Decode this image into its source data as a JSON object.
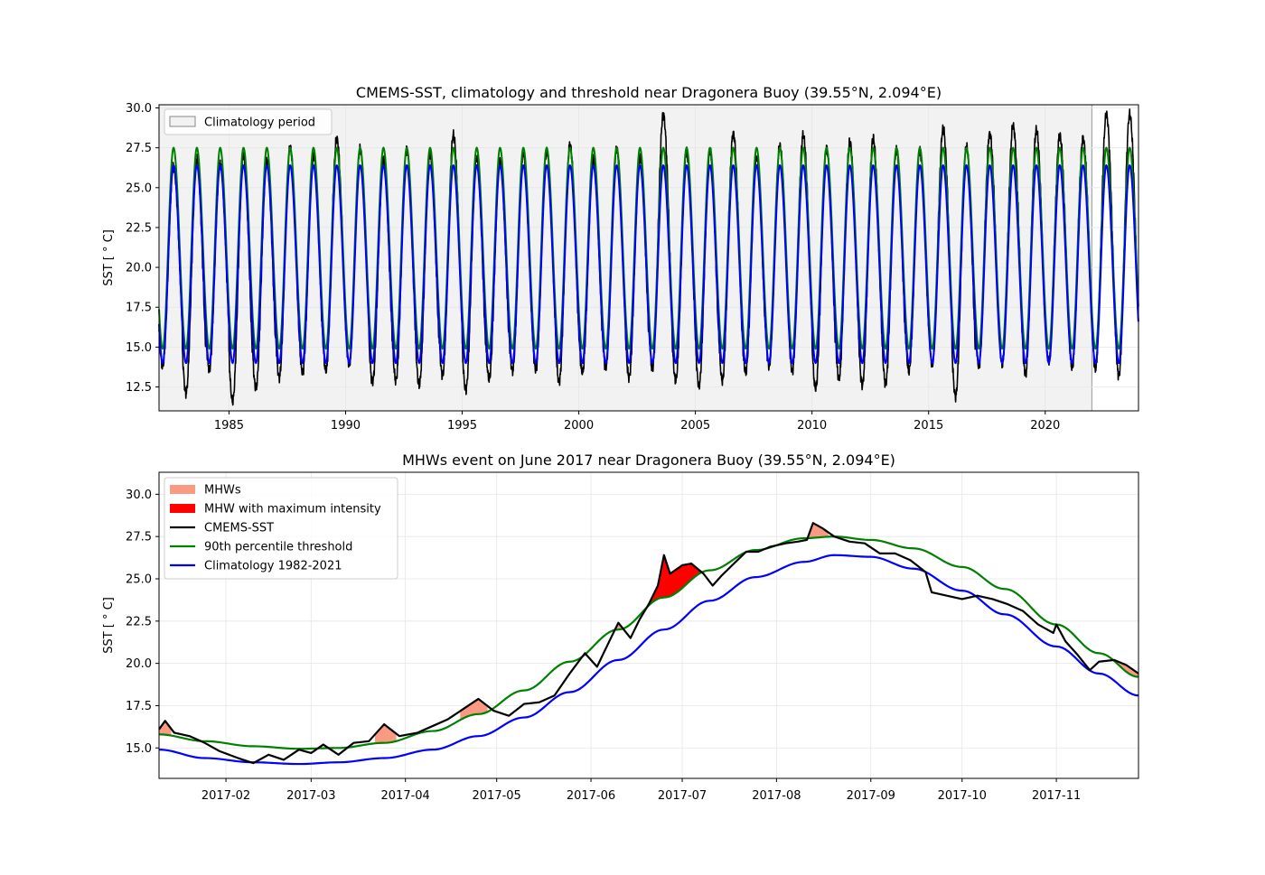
{
  "colors": {
    "sst": "#000000",
    "threshold": "#008000",
    "climatology": "#0000ff",
    "mhw": "#fa9a82",
    "mhw_max": "#ff0000",
    "clim_period_fill": "#f2f2f2",
    "grid": "#e6e6e6"
  },
  "chart_data": [
    {
      "type": "line",
      "title": "CMEMS-SST, climatology and threshold near Dragonera Buoy (39.55°N, 2.094°E)",
      "xlabel": "",
      "ylabel": "SST [$^\\circ$C]",
      "ylabel_display": "SST [ ° C]",
      "xlim": [
        1982.0,
        2024.0
      ],
      "ylim": [
        11.0,
        30.2
      ],
      "xticks": [
        1985,
        1990,
        1995,
        2000,
        2005,
        2010,
        2015,
        2020
      ],
      "xtick_labels": [
        "1985",
        "1990",
        "1995",
        "2000",
        "2005",
        "2010",
        "2015",
        "2020"
      ],
      "yticks": [
        12.5,
        15.0,
        17.5,
        20.0,
        22.5,
        25.0,
        27.5,
        30.0
      ],
      "ytick_labels": [
        "12.5",
        "15.0",
        "17.5",
        "20.0",
        "22.5",
        "25.0",
        "27.5",
        "30.0"
      ],
      "grid": true,
      "legend": {
        "placement": "top-left",
        "entries": [
          {
            "label": "Climatology period",
            "kind": "patch"
          }
        ]
      },
      "climatology_period": {
        "start": 1982.0,
        "end": 2022.0
      },
      "seasonal_cycle": {
        "climatology_min": 14.0,
        "climatology_max": 26.4,
        "threshold_min": 14.9,
        "threshold_max": 27.5,
        "peak_day_of_year": 227,
        "trough_day_of_year": 57
      },
      "annual_sst_peaks": [
        {
          "year": 1982,
          "value": 26.3
        },
        {
          "year": 1983,
          "value": 26.8
        },
        {
          "year": 1984,
          "value": 26.5
        },
        {
          "year": 1985,
          "value": 27.0
        },
        {
          "year": 1986,
          "value": 26.7
        },
        {
          "year": 1987,
          "value": 27.5
        },
        {
          "year": 1988,
          "value": 27.0
        },
        {
          "year": 1989,
          "value": 28.1
        },
        {
          "year": 1990,
          "value": 27.4
        },
        {
          "year": 1991,
          "value": 26.8
        },
        {
          "year": 1992,
          "value": 27.4
        },
        {
          "year": 1993,
          "value": 27.1
        },
        {
          "year": 1994,
          "value": 28.3
        },
        {
          "year": 1995,
          "value": 26.9
        },
        {
          "year": 1996,
          "value": 26.7
        },
        {
          "year": 1997,
          "value": 27.1
        },
        {
          "year": 1998,
          "value": 27.3
        },
        {
          "year": 1999,
          "value": 27.7
        },
        {
          "year": 2000,
          "value": 26.8
        },
        {
          "year": 2001,
          "value": 27.4
        },
        {
          "year": 2002,
          "value": 26.9
        },
        {
          "year": 2003,
          "value": 29.6
        },
        {
          "year": 2004,
          "value": 27.2
        },
        {
          "year": 2005,
          "value": 27.3
        },
        {
          "year": 2006,
          "value": 28.4
        },
        {
          "year": 2007,
          "value": 26.9
        },
        {
          "year": 2008,
          "value": 27.6
        },
        {
          "year": 2009,
          "value": 28.3
        },
        {
          "year": 2010,
          "value": 27.5
        },
        {
          "year": 2011,
          "value": 27.9
        },
        {
          "year": 2012,
          "value": 28.1
        },
        {
          "year": 2013,
          "value": 27.4
        },
        {
          "year": 2014,
          "value": 27.3
        },
        {
          "year": 2015,
          "value": 28.7
        },
        {
          "year": 2016,
          "value": 27.6
        },
        {
          "year": 2017,
          "value": 28.4
        },
        {
          "year": 2018,
          "value": 28.9
        },
        {
          "year": 2019,
          "value": 28.6
        },
        {
          "year": 2020,
          "value": 28.3
        },
        {
          "year": 2021,
          "value": 28.1
        },
        {
          "year": 2022,
          "value": 29.6
        },
        {
          "year": 2023,
          "value": 29.6
        }
      ],
      "annual_sst_troughs": [
        {
          "year": 1982,
          "value": 13.8
        },
        {
          "year": 1983,
          "value": 12.1
        },
        {
          "year": 1984,
          "value": 13.6
        },
        {
          "year": 1985,
          "value": 11.6
        },
        {
          "year": 1986,
          "value": 12.4
        },
        {
          "year": 1987,
          "value": 13.1
        },
        {
          "year": 1988,
          "value": 13.4
        },
        {
          "year": 1989,
          "value": 13.5
        },
        {
          "year": 1990,
          "value": 13.9
        },
        {
          "year": 1991,
          "value": 12.8
        },
        {
          "year": 1992,
          "value": 12.9
        },
        {
          "year": 1993,
          "value": 12.6
        },
        {
          "year": 1994,
          "value": 13.2
        },
        {
          "year": 1995,
          "value": 12.3
        },
        {
          "year": 1996,
          "value": 13.0
        },
        {
          "year": 1997,
          "value": 13.5
        },
        {
          "year": 1998,
          "value": 13.6
        },
        {
          "year": 1999,
          "value": 12.8
        },
        {
          "year": 2000,
          "value": 13.4
        },
        {
          "year": 2001,
          "value": 13.7
        },
        {
          "year": 2002,
          "value": 13.1
        },
        {
          "year": 2003,
          "value": 13.6
        },
        {
          "year": 2004,
          "value": 12.9
        },
        {
          "year": 2005,
          "value": 12.6
        },
        {
          "year": 2006,
          "value": 12.9
        },
        {
          "year": 2007,
          "value": 13.4
        },
        {
          "year": 2008,
          "value": 13.8
        },
        {
          "year": 2009,
          "value": 13.5
        },
        {
          "year": 2010,
          "value": 12.4
        },
        {
          "year": 2011,
          "value": 13.0
        },
        {
          "year": 2012,
          "value": 12.6
        },
        {
          "year": 2013,
          "value": 12.7
        },
        {
          "year": 2014,
          "value": 13.5
        },
        {
          "year": 2015,
          "value": 13.9
        },
        {
          "year": 2016,
          "value": 11.9
        },
        {
          "year": 2017,
          "value": 13.8
        },
        {
          "year": 2018,
          "value": 13.9
        },
        {
          "year": 2019,
          "value": 13.3
        },
        {
          "year": 2020,
          "value": 14.1
        },
        {
          "year": 2021,
          "value": 13.7
        },
        {
          "year": 2022,
          "value": 13.6
        },
        {
          "year": 2023,
          "value": 13.2
        }
      ]
    },
    {
      "type": "line",
      "title": "MHWs event on June 2017 near Dragonera Buoy (39.55°N, 2.094°E)",
      "xlabel": "",
      "ylabel": "SST [$^\\circ$C]",
      "ylabel_display": "SST [ ° C]",
      "xlim": [
        "2017-01-10",
        "2017-11-28"
      ],
      "ylim": [
        13.2,
        31.3
      ],
      "xticks": [
        "2017-02-01",
        "2017-03-01",
        "2017-04-01",
        "2017-05-01",
        "2017-06-01",
        "2017-07-01",
        "2017-08-01",
        "2017-09-01",
        "2017-10-01",
        "2017-11-01"
      ],
      "xtick_labels": [
        "2017-02",
        "2017-03",
        "2017-04",
        "2017-05",
        "2017-06",
        "2017-07",
        "2017-08",
        "2017-09",
        "2017-10",
        "2017-11"
      ],
      "yticks": [
        15.0,
        17.5,
        20.0,
        22.5,
        25.0,
        27.5,
        30.0
      ],
      "ytick_labels": [
        "15.0",
        "17.5",
        "20.0",
        "22.5",
        "25.0",
        "27.5",
        "30.0"
      ],
      "grid": true,
      "legend": {
        "placement": "top-left",
        "entries": [
          {
            "label": "MHWs",
            "kind": "patch"
          },
          {
            "label": "MHW with maximum intensity",
            "kind": "patch"
          },
          {
            "label": "CMEMS-SST",
            "kind": "line"
          },
          {
            "label": "90th percentile threshold",
            "kind": "line"
          },
          {
            "label": "Climatology 1982-2021",
            "kind": "line"
          }
        ]
      },
      "climatology_curve": [
        {
          "date": "2017-01-10",
          "value": 14.9
        },
        {
          "date": "2017-01-25",
          "value": 14.4
        },
        {
          "date": "2017-02-10",
          "value": 14.15
        },
        {
          "date": "2017-02-25",
          "value": 14.05
        },
        {
          "date": "2017-03-10",
          "value": 14.15
        },
        {
          "date": "2017-03-25",
          "value": 14.4
        },
        {
          "date": "2017-04-10",
          "value": 14.9
        },
        {
          "date": "2017-04-25",
          "value": 15.7
        },
        {
          "date": "2017-05-10",
          "value": 16.8
        },
        {
          "date": "2017-05-25",
          "value": 18.3
        },
        {
          "date": "2017-06-10",
          "value": 20.2
        },
        {
          "date": "2017-06-25",
          "value": 22.0
        },
        {
          "date": "2017-07-10",
          "value": 23.7
        },
        {
          "date": "2017-07-25",
          "value": 25.1
        },
        {
          "date": "2017-08-10",
          "value": 26.0
        },
        {
          "date": "2017-08-20",
          "value": 26.4
        },
        {
          "date": "2017-09-01",
          "value": 26.3
        },
        {
          "date": "2017-09-15",
          "value": 25.6
        },
        {
          "date": "2017-10-01",
          "value": 24.3
        },
        {
          "date": "2017-10-15",
          "value": 22.9
        },
        {
          "date": "2017-11-01",
          "value": 21.0
        },
        {
          "date": "2017-11-15",
          "value": 19.4
        },
        {
          "date": "2017-11-28",
          "value": 18.1
        }
      ],
      "threshold_curve": [
        {
          "date": "2017-01-10",
          "value": 15.8
        },
        {
          "date": "2017-01-25",
          "value": 15.4
        },
        {
          "date": "2017-02-10",
          "value": 15.1
        },
        {
          "date": "2017-02-25",
          "value": 14.95
        },
        {
          "date": "2017-03-10",
          "value": 15.0
        },
        {
          "date": "2017-03-25",
          "value": 15.3
        },
        {
          "date": "2017-04-10",
          "value": 16.0
        },
        {
          "date": "2017-04-25",
          "value": 17.0
        },
        {
          "date": "2017-05-10",
          "value": 18.4
        },
        {
          "date": "2017-05-25",
          "value": 20.1
        },
        {
          "date": "2017-06-10",
          "value": 22.0
        },
        {
          "date": "2017-06-25",
          "value": 23.9
        },
        {
          "date": "2017-07-10",
          "value": 25.5
        },
        {
          "date": "2017-07-25",
          "value": 26.7
        },
        {
          "date": "2017-08-10",
          "value": 27.4
        },
        {
          "date": "2017-08-20",
          "value": 27.5
        },
        {
          "date": "2017-09-01",
          "value": 27.3
        },
        {
          "date": "2017-09-15",
          "value": 26.8
        },
        {
          "date": "2017-10-01",
          "value": 25.7
        },
        {
          "date": "2017-10-15",
          "value": 24.4
        },
        {
          "date": "2017-11-01",
          "value": 22.3
        },
        {
          "date": "2017-11-15",
          "value": 20.6
        },
        {
          "date": "2017-11-28",
          "value": 19.2
        }
      ],
      "sst_curve": [
        {
          "date": "2017-01-10",
          "value": 16.1
        },
        {
          "date": "2017-01-12",
          "value": 16.6
        },
        {
          "date": "2017-01-15",
          "value": 15.9
        },
        {
          "date": "2017-01-20",
          "value": 15.7
        },
        {
          "date": "2017-01-25",
          "value": 15.3
        },
        {
          "date": "2017-01-30",
          "value": 14.8
        },
        {
          "date": "2017-02-05",
          "value": 14.4
        },
        {
          "date": "2017-02-10",
          "value": 14.1
        },
        {
          "date": "2017-02-15",
          "value": 14.6
        },
        {
          "date": "2017-02-20",
          "value": 14.3
        },
        {
          "date": "2017-02-25",
          "value": 14.9
        },
        {
          "date": "2017-03-01",
          "value": 14.7
        },
        {
          "date": "2017-03-05",
          "value": 15.2
        },
        {
          "date": "2017-03-10",
          "value": 14.6
        },
        {
          "date": "2017-03-15",
          "value": 15.3
        },
        {
          "date": "2017-03-20",
          "value": 15.4
        },
        {
          "date": "2017-03-25",
          "value": 16.4
        },
        {
          "date": "2017-03-30",
          "value": 15.7
        },
        {
          "date": "2017-04-05",
          "value": 15.9
        },
        {
          "date": "2017-04-10",
          "value": 16.3
        },
        {
          "date": "2017-04-15",
          "value": 16.7
        },
        {
          "date": "2017-04-20",
          "value": 17.3
        },
        {
          "date": "2017-04-25",
          "value": 17.9
        },
        {
          "date": "2017-04-30",
          "value": 17.2
        },
        {
          "date": "2017-05-05",
          "value": 16.9
        },
        {
          "date": "2017-05-10",
          "value": 17.6
        },
        {
          "date": "2017-05-15",
          "value": 17.7
        },
        {
          "date": "2017-05-20",
          "value": 18.1
        },
        {
          "date": "2017-05-25",
          "value": 19.4
        },
        {
          "date": "2017-05-30",
          "value": 20.6
        },
        {
          "date": "2017-06-03",
          "value": 19.8
        },
        {
          "date": "2017-06-07",
          "value": 21.3
        },
        {
          "date": "2017-06-10",
          "value": 22.4
        },
        {
          "date": "2017-06-14",
          "value": 21.5
        },
        {
          "date": "2017-06-17",
          "value": 22.6
        },
        {
          "date": "2017-06-20",
          "value": 23.5
        },
        {
          "date": "2017-06-23",
          "value": 24.6
        },
        {
          "date": "2017-06-25",
          "value": 26.4
        },
        {
          "date": "2017-06-27",
          "value": 25.3
        },
        {
          "date": "2017-07-01",
          "value": 25.8
        },
        {
          "date": "2017-07-04",
          "value": 25.9
        },
        {
          "date": "2017-07-08",
          "value": 25.3
        },
        {
          "date": "2017-07-11",
          "value": 24.6
        },
        {
          "date": "2017-07-14",
          "value": 25.2
        },
        {
          "date": "2017-07-18",
          "value": 25.9
        },
        {
          "date": "2017-07-22",
          "value": 26.6
        },
        {
          "date": "2017-07-26",
          "value": 26.6
        },
        {
          "date": "2017-07-30",
          "value": 26.9
        },
        {
          "date": "2017-08-04",
          "value": 27.1
        },
        {
          "date": "2017-08-08",
          "value": 27.2
        },
        {
          "date": "2017-08-11",
          "value": 27.3
        },
        {
          "date": "2017-08-13",
          "value": 28.3
        },
        {
          "date": "2017-08-16",
          "value": 28.0
        },
        {
          "date": "2017-08-20",
          "value": 27.5
        },
        {
          "date": "2017-08-25",
          "value": 27.2
        },
        {
          "date": "2017-08-30",
          "value": 27.1
        },
        {
          "date": "2017-09-04",
          "value": 26.5
        },
        {
          "date": "2017-09-09",
          "value": 26.5
        },
        {
          "date": "2017-09-14",
          "value": 26.1
        },
        {
          "date": "2017-09-19",
          "value": 25.4
        },
        {
          "date": "2017-09-21",
          "value": 24.2
        },
        {
          "date": "2017-09-26",
          "value": 24.0
        },
        {
          "date": "2017-10-01",
          "value": 23.8
        },
        {
          "date": "2017-10-06",
          "value": 24.0
        },
        {
          "date": "2017-10-11",
          "value": 23.8
        },
        {
          "date": "2017-10-16",
          "value": 23.5
        },
        {
          "date": "2017-10-21",
          "value": 23.1
        },
        {
          "date": "2017-10-26",
          "value": 22.3
        },
        {
          "date": "2017-10-31",
          "value": 21.8
        },
        {
          "date": "2017-11-01",
          "value": 22.3
        },
        {
          "date": "2017-11-04",
          "value": 21.3
        },
        {
          "date": "2017-11-08",
          "value": 20.5
        },
        {
          "date": "2017-11-12",
          "value": 19.6
        },
        {
          "date": "2017-11-15",
          "value": 20.1
        },
        {
          "date": "2017-11-20",
          "value": 20.2
        },
        {
          "date": "2017-11-24",
          "value": 19.9
        },
        {
          "date": "2017-11-28",
          "value": 19.4
        }
      ],
      "mhw_events": [
        {
          "start": "2017-01-10",
          "end": "2017-01-14",
          "max_intensity": false
        },
        {
          "start": "2017-03-22",
          "end": "2017-03-29",
          "max_intensity": false
        },
        {
          "start": "2017-04-19",
          "end": "2017-04-28",
          "max_intensity": false
        },
        {
          "start": "2017-05-28",
          "end": "2017-06-01",
          "max_intensity": false
        },
        {
          "start": "2017-06-09",
          "end": "2017-06-12",
          "max_intensity": false
        },
        {
          "start": "2017-06-20",
          "end": "2017-07-07",
          "max_intensity": true
        },
        {
          "start": "2017-08-11",
          "end": "2017-08-18",
          "max_intensity": false
        },
        {
          "start": "2017-11-14",
          "end": "2017-11-28",
          "max_intensity": false
        }
      ]
    }
  ]
}
